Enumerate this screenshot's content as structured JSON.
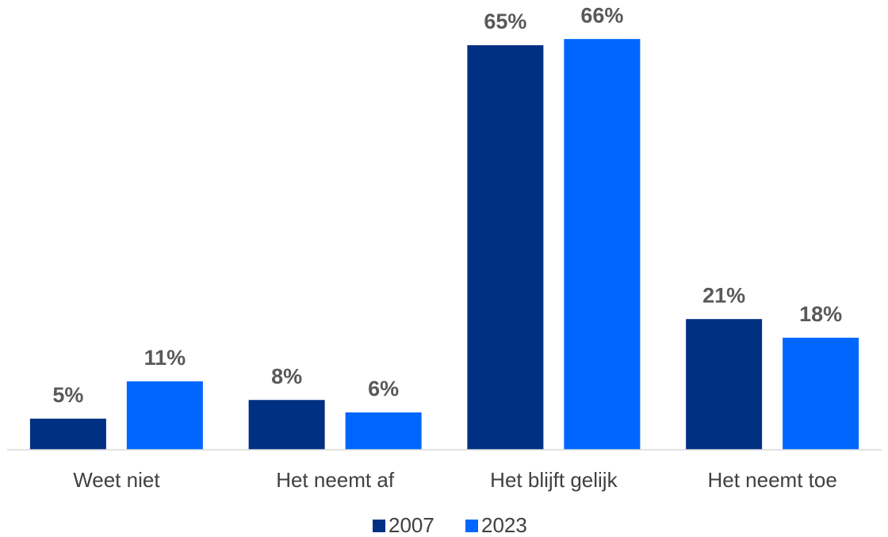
{
  "chart_data": {
    "type": "bar",
    "categories": [
      "Weet niet",
      "Het neemt af",
      "Het blijft gelijk",
      "Het neemt toe"
    ],
    "series": [
      {
        "name": "2007",
        "color": "#003082",
        "values": [
          5,
          8,
          65,
          21
        ],
        "value_labels": [
          "5%",
          "8%",
          "65%",
          "21%"
        ]
      },
      {
        "name": "2023",
        "color": "#0066ff",
        "values": [
          11,
          6,
          66,
          18
        ],
        "value_labels": [
          "11%",
          "6%",
          "66%",
          "18%"
        ]
      }
    ]
  }
}
